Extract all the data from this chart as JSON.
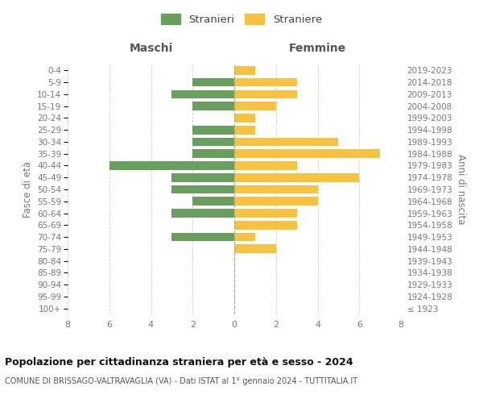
{
  "age_groups": [
    "100+",
    "95-99",
    "90-94",
    "85-89",
    "80-84",
    "75-79",
    "70-74",
    "65-69",
    "60-64",
    "55-59",
    "50-54",
    "45-49",
    "40-44",
    "35-39",
    "30-34",
    "25-29",
    "20-24",
    "15-19",
    "10-14",
    "5-9",
    "0-4"
  ],
  "birth_years": [
    "≤ 1923",
    "1924-1928",
    "1929-1933",
    "1934-1938",
    "1939-1943",
    "1944-1948",
    "1949-1953",
    "1954-1958",
    "1959-1963",
    "1964-1968",
    "1969-1973",
    "1974-1978",
    "1979-1983",
    "1984-1988",
    "1989-1993",
    "1994-1998",
    "1999-2003",
    "2004-2008",
    "2009-2013",
    "2014-2018",
    "2019-2023"
  ],
  "maschi": [
    0,
    0,
    0,
    0,
    0,
    0,
    3,
    0,
    3,
    2,
    3,
    3,
    6,
    2,
    2,
    2,
    0,
    2,
    3,
    2,
    0
  ],
  "femmine": [
    0,
    0,
    0,
    0,
    0,
    2,
    1,
    3,
    3,
    4,
    4,
    6,
    3,
    7,
    5,
    1,
    1,
    2,
    3,
    3,
    1
  ],
  "color_maschi": "#6a9e5e",
  "color_femmine": "#f5c242",
  "title": "Popolazione per cittadinanza straniera per età e sesso - 2024",
  "subtitle": "COMUNE DI BRISSAGO-VALTRAVAGLIA (VA) - Dati ISTAT al 1° gennaio 2024 - TUTTITALIA.IT",
  "ylabel_left": "Fasce di età",
  "ylabel_right": "Anni di nascita",
  "xlabel_maschi": "Maschi",
  "xlabel_femmine": "Femmine",
  "legend_maschi": "Stranieri",
  "legend_femmine": "Straniere",
  "xlim": 8,
  "background_color": "#ffffff",
  "grid_color": "#cccccc"
}
